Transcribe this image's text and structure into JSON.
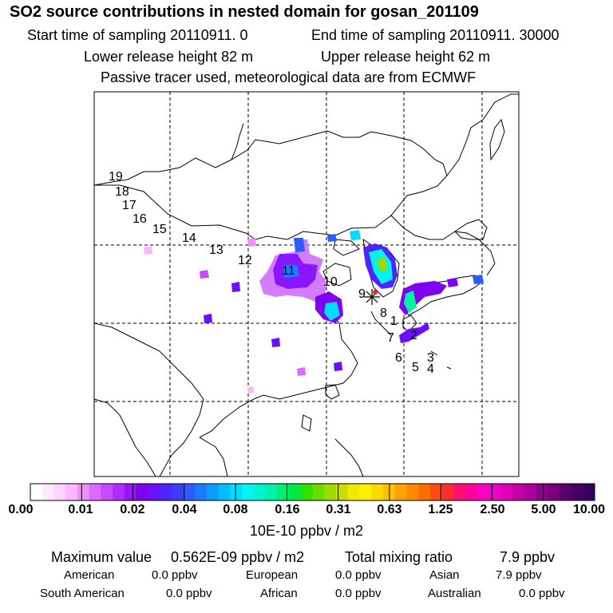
{
  "chart_data": {
    "type": "heatmap",
    "title": "SO2 source contributions in nested domain for gosan_201109",
    "subtitle_lines": [
      {
        "left": "Start time of sampling 20110911.     0",
        "right": "End time of sampling 20110911. 30000"
      },
      {
        "left": "Lower release height   82 m",
        "right": "Upper release height   62 m"
      },
      {
        "center": "Passive tracer used, meteorological data are from ECMWF"
      }
    ],
    "colorbar": {
      "tick_labels": [
        "0.00",
        "0.01",
        "0.02",
        "0.04",
        "0.08",
        "0.16",
        "0.31",
        "0.63",
        "1.25",
        "2.50",
        "5.00",
        "10.00"
      ],
      "unit_label": "10E-10 ppbv / m2",
      "bin_colors": [
        "#ffffff",
        "#ffeaff",
        "#ffd2ff",
        "#ffb6ff",
        "#f28cff",
        "#dc6aff",
        "#c84aff",
        "#b02cff",
        "#9a10ff",
        "#8000f0",
        "#6a10ff",
        "#5024ff",
        "#3a3cff",
        "#2a5cff",
        "#1a7cff",
        "#0c9cff",
        "#00bcff",
        "#00dcff",
        "#00f4f4",
        "#00f2d4",
        "#00f0a8",
        "#00ee74",
        "#00e844",
        "#30e000",
        "#68dc00",
        "#9cdc00",
        "#ccdc00",
        "#ecec00",
        "#fff000",
        "#ffd800",
        "#ffc000",
        "#ffa400",
        "#ff8a00",
        "#ff6c00",
        "#ff4c10",
        "#ff2c30",
        "#ff1070",
        "#ff009c",
        "#ff00c4",
        "#f000c8",
        "#dc00b8",
        "#c400a8",
        "#a8009a",
        "#90008c",
        "#78007e",
        "#5c0070",
        "#460064",
        "#36005a"
      ]
    },
    "source_receptor": "gosan",
    "trajectory_points": [
      "1",
      "2",
      "3",
      "4",
      "5",
      "6",
      "7",
      "8",
      "9",
      "10",
      "11",
      "12",
      "13",
      "14",
      "15",
      "16",
      "17",
      "18",
      "19"
    ],
    "stats": {
      "maximum_label": "Maximum value",
      "maximum_value": "0.562E-09 ppbv / m2",
      "total_label": "Total mixing ratio",
      "total_value": "7.9 ppbv",
      "regions": [
        {
          "name": "American",
          "value": "0.0 ppbv"
        },
        {
          "name": "European",
          "value": "0.0 ppbv"
        },
        {
          "name": "Asian",
          "value": "7.9 ppbv"
        },
        {
          "name": "South American",
          "value": "0.0 ppbv"
        },
        {
          "name": "African",
          "value": "0.0 ppbv"
        },
        {
          "name": "Australian",
          "value": "0.0 ppbv"
        }
      ]
    }
  }
}
